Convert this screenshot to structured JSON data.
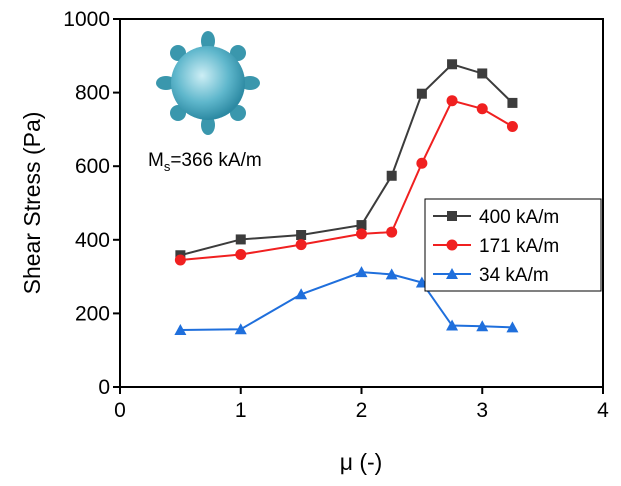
{
  "chart_data": {
    "type": "line",
    "xlabel": "μ (-)",
    "ylabel": "Shear Stress (Pa)",
    "annotation": [
      "M",
      "s",
      "=366 kA/m"
    ],
    "x": [
      0.5,
      1,
      1.5,
      2,
      2.25,
      2.5,
      2.75,
      3,
      3.25
    ],
    "series": [
      {
        "name": "400 kA/m",
        "color": "#3c3c3c",
        "marker": "square",
        "values": [
          358,
          401,
          413,
          440,
          574,
          797,
          877,
          852,
          772
        ]
      },
      {
        "name": "171 kA/m",
        "color": "#f02020",
        "marker": "circle",
        "values": [
          345,
          360,
          387,
          416,
          421,
          608,
          778,
          756,
          708
        ]
      },
      {
        "name": "34 kA/m",
        "color": "#1f6fdc",
        "marker": "triangle",
        "values": [
          155,
          157,
          252,
          312,
          306,
          284,
          167,
          165,
          162
        ]
      }
    ],
    "xlim": [
      0,
      4
    ],
    "xticks": [
      0,
      1,
      2,
      3,
      4
    ],
    "ylim": [
      0,
      1000
    ],
    "yticks": [
      0,
      200,
      400,
      600,
      800,
      1000
    ],
    "legend_position": "center right"
  }
}
